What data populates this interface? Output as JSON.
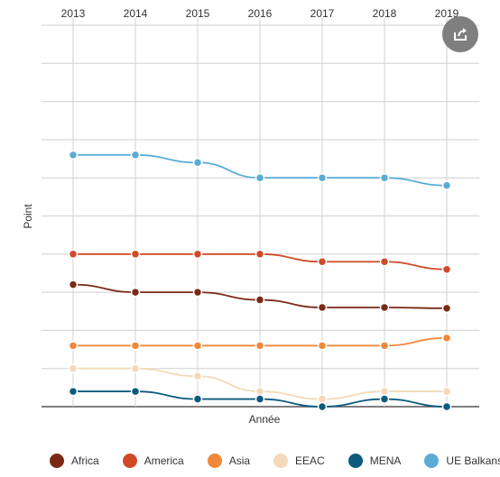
{
  "colors": {
    "Africa": "#7a2a14",
    "America": "#d04a28",
    "Asia": "#f0873a",
    "EEAC": "#f3d9b8",
    "MENA": "#0c5a7e",
    "UE Balkans": "#5aacd6"
  },
  "share_icon": "share-icon",
  "chart_data": {
    "type": "line",
    "title": "",
    "xlabel": "Année",
    "ylabel": "Point",
    "categories": [
      "2013",
      "2014",
      "2015",
      "2016",
      "2017",
      "2018",
      "2019"
    ],
    "ylim": [
      0,
      10
    ],
    "ytick_count": 10,
    "y_tick_labels_shown": false,
    "grid": true,
    "legend_position": "bottom",
    "series": [
      {
        "name": "Africa",
        "values": [
          3.2,
          3.0,
          3.0,
          2.8,
          2.6,
          2.6,
          2.58
        ]
      },
      {
        "name": "America",
        "values": [
          4.0,
          4.0,
          4.0,
          4.0,
          3.8,
          3.8,
          3.6
        ]
      },
      {
        "name": "Asia",
        "values": [
          1.6,
          1.6,
          1.6,
          1.6,
          1.6,
          1.6,
          1.8
        ]
      },
      {
        "name": "EEAC",
        "values": [
          1.0,
          1.0,
          0.8,
          0.4,
          0.2,
          0.4,
          0.4
        ]
      },
      {
        "name": "MENA",
        "values": [
          0.4,
          0.4,
          0.2,
          0.2,
          0.0,
          0.2,
          0.0
        ]
      },
      {
        "name": "UE Balkans",
        "values": [
          6.6,
          6.6,
          6.4,
          6.0,
          6.0,
          6.0,
          5.8
        ]
      }
    ]
  }
}
